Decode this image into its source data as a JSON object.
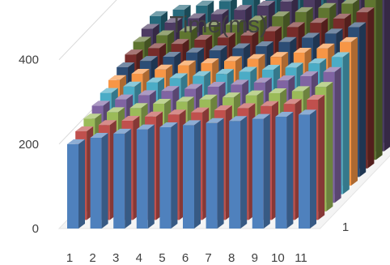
{
  "chart_data": {
    "type": "bar",
    "style": "3d-column",
    "title": "Time(ms)",
    "categories": [
      "1",
      "2",
      "3",
      "4",
      "5",
      "6",
      "7",
      "8",
      "9",
      "10",
      "11"
    ],
    "series_axis_labels": [
      "1"
    ],
    "y_ticks": [
      0,
      200,
      400
    ],
    "ylim": [
      0,
      480
    ],
    "gridlines": true,
    "series": [
      {
        "color": "#4f81bd",
        "values": [
          200,
          215,
          225,
          235,
          240,
          245,
          250,
          255,
          260,
          265,
          270
        ]
      },
      {
        "color": "#c0504d",
        "values": [
          210,
          225,
          235,
          245,
          250,
          255,
          260,
          265,
          270,
          275,
          285
        ]
      },
      {
        "color": "#9bbb59",
        "values": [
          220,
          235,
          245,
          255,
          260,
          265,
          270,
          275,
          280,
          285,
          295
        ]
      },
      {
        "color": "#8064a2",
        "values": [
          230,
          245,
          255,
          265,
          270,
          275,
          280,
          285,
          290,
          300,
          310
        ]
      },
      {
        "color": "#4bacc6",
        "values": [
          240,
          255,
          265,
          275,
          280,
          285,
          290,
          295,
          300,
          310,
          325
        ]
      },
      {
        "color": "#f79646",
        "values": [
          250,
          265,
          275,
          285,
          290,
          295,
          300,
          305,
          315,
          325,
          340
        ]
      },
      {
        "color": "#2c4d75",
        "values": [
          260,
          275,
          285,
          295,
          300,
          305,
          310,
          320,
          330,
          340,
          355
        ]
      },
      {
        "color": "#772c2a",
        "values": [
          270,
          285,
          295,
          305,
          310,
          315,
          325,
          335,
          345,
          355,
          370
        ]
      },
      {
        "color": "#5f7530",
        "values": [
          280,
          295,
          305,
          315,
          320,
          330,
          340,
          350,
          360,
          370,
          385
        ]
      },
      {
        "color": "#4d3b62",
        "values": [
          290,
          305,
          315,
          325,
          335,
          345,
          355,
          365,
          375,
          385,
          400
        ]
      },
      {
        "color": "#276a7c",
        "values": [
          300,
          315,
          325,
          335,
          345,
          355,
          365,
          375,
          385,
          395,
          410
        ]
      }
    ]
  }
}
